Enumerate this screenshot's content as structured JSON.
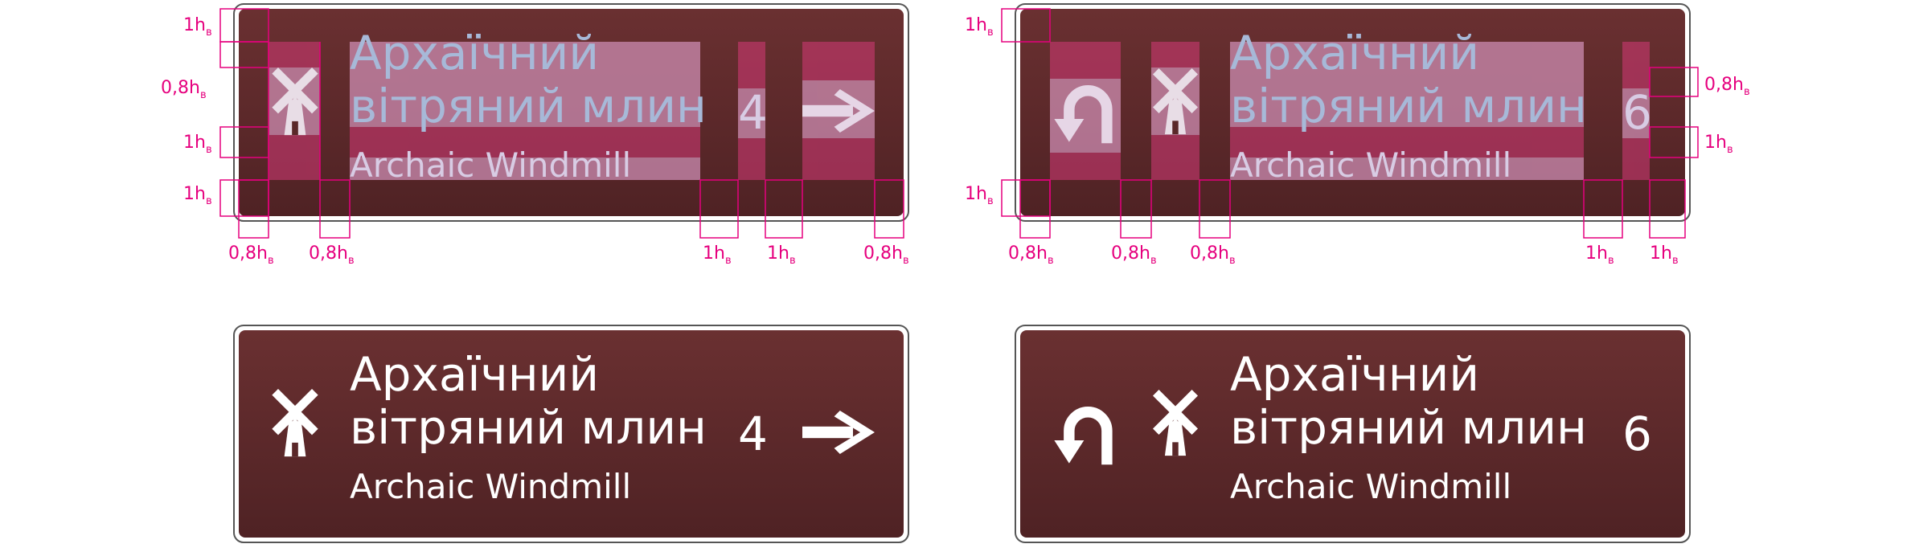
{
  "colors": {
    "sign_top": "#6a3031",
    "sign_bottom": "#4f2224",
    "border": "#ffffff",
    "outline": "#555555",
    "dim": "#e6007e",
    "overlay_text": "#a7b9d8",
    "overlay_pad": "#d63a78",
    "sign_text": "#ffffff"
  },
  "dimension_labels": {
    "one": "1h",
    "zero_eight": "0,8h",
    "subscript": "в"
  },
  "signs": [
    {
      "id": "sign1",
      "title_line1": "Архаїчний",
      "title_line2": "вітряний млин",
      "subtitle": "Archaic Windmill",
      "distance": "4",
      "symbol": "windmill-icon",
      "direction": "arrow-right-icon"
    },
    {
      "id": "sign2",
      "title_line1": "Архаїчний",
      "title_line2": "вітряний млин",
      "subtitle": "Archaic Windmill",
      "distance": "6",
      "symbol": "windmill-icon",
      "direction": "u-turn-left-icon"
    }
  ]
}
